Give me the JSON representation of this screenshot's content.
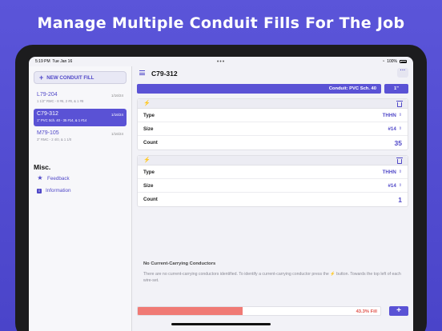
{
  "headline": "Manage Multiple Conduit Fills For The Job",
  "status": {
    "time": "5:19 PM",
    "date": "Tue Jan 16",
    "battery": "100%"
  },
  "sidebar": {
    "new_button": "NEW CONDUIT FILL",
    "fills": [
      {
        "name": "L79-204",
        "date": "1/16/24",
        "desc": "1 1/2\" RMC - 8 #6, 2 #8, & 1 #8"
      },
      {
        "name": "C79-312",
        "date": "1/16/24",
        "desc": "1\" PVC Sch. 40 - 35 #14, & 1 #14",
        "selected": true
      },
      {
        "name": "M79-105",
        "date": "1/16/24",
        "desc": "3\" RMC - 2 4/0, & 1 1/0"
      }
    ],
    "misc_title": "Misc.",
    "misc_items": [
      {
        "label": "Feedback"
      },
      {
        "label": "Information"
      }
    ]
  },
  "main": {
    "title": "C79-312",
    "more": "···",
    "conduit_label": "Conduit: PVC Sch. 40",
    "conduit_size": "1\"",
    "wires": [
      {
        "type_label": "Type",
        "type_value": "THHN",
        "size_label": "Size",
        "size_value": "#14",
        "count_label": "Count",
        "count_value": "35"
      },
      {
        "type_label": "Type",
        "type_value": "THHN",
        "size_label": "Size",
        "size_value": "#14",
        "count_label": "Count",
        "count_value": "1"
      }
    ],
    "notice_title": "No Current-Carrying Conductors",
    "notice_text": "There are no current-carrying conductors identified. To identify a current-carrying conductor press the ⚡ button. Towards the top left of each wire-set.",
    "fill_percent": 43.3,
    "fill_label": "43.3% Fill",
    "add_label": "+"
  },
  "colors": {
    "accent": "#5a52d5",
    "fill_bar": "#f07a75",
    "fill_text": "#e0524a"
  },
  "icons": {
    "menu": "menu-icon",
    "bolt": "bolt-icon",
    "trash": "trash-icon",
    "star": "star-icon",
    "info": "info-icon"
  }
}
